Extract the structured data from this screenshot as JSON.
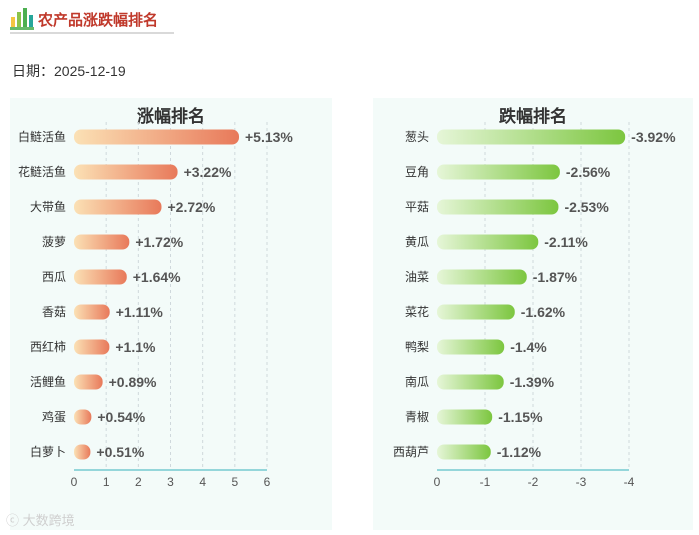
{
  "header": {
    "title": "农产品涨跌幅排名",
    "logo_icon": "bar-chart-logo-icon"
  },
  "date": {
    "label": "日期：",
    "value": "2025-12-19"
  },
  "watermark": "大数跨境",
  "colors": {
    "title_red": "#c0392b",
    "gain_start": "#fbe1b5",
    "gain_end": "#e8795a",
    "loss_start": "#e6f6d8",
    "loss_end": "#7cc63f",
    "panel_bg": "#f3fbf9",
    "axis": "#5bc0c8"
  },
  "chart_data": [
    {
      "type": "bar",
      "orientation": "horizontal",
      "title": "涨幅排名",
      "categories": [
        "白鲢活鱼",
        "花鲢活鱼",
        "大带鱼",
        "菠萝",
        "西瓜",
        "香菇",
        "西红柿",
        "活鲤鱼",
        "鸡蛋",
        "白萝卜"
      ],
      "values": [
        5.13,
        3.22,
        2.72,
        1.72,
        1.64,
        1.11,
        1.1,
        0.89,
        0.54,
        0.51
      ],
      "labels": [
        "+5.13%",
        "+3.22%",
        "+2.72%",
        "+1.72%",
        "+1.64%",
        "+1.11%",
        "+1.1%",
        "+0.89%",
        "+0.54%",
        "+0.51%"
      ],
      "xlim": [
        0,
        6
      ],
      "xticks": [
        "0",
        "1",
        "2",
        "3",
        "4",
        "5",
        "6"
      ],
      "grid": true
    },
    {
      "type": "bar",
      "orientation": "horizontal",
      "title": "跌幅排名",
      "categories": [
        "葱头",
        "豆角",
        "平菇",
        "黄瓜",
        "油菜",
        "菜花",
        "鸭梨",
        "南瓜",
        "青椒",
        "西葫芦"
      ],
      "values": [
        -3.92,
        -2.56,
        -2.53,
        -2.11,
        -1.87,
        -1.62,
        -1.4,
        -1.39,
        -1.15,
        -1.12
      ],
      "labels": [
        "-3.92%",
        "-2.56%",
        "-2.53%",
        "-2.11%",
        "-1.87%",
        "-1.62%",
        "-1.4%",
        "-1.39%",
        "-1.15%",
        "-1.12%"
      ],
      "xlim": [
        0,
        -4
      ],
      "xticks": [
        "0",
        "-1",
        "-2",
        "-3",
        "-4"
      ],
      "grid": true
    }
  ]
}
